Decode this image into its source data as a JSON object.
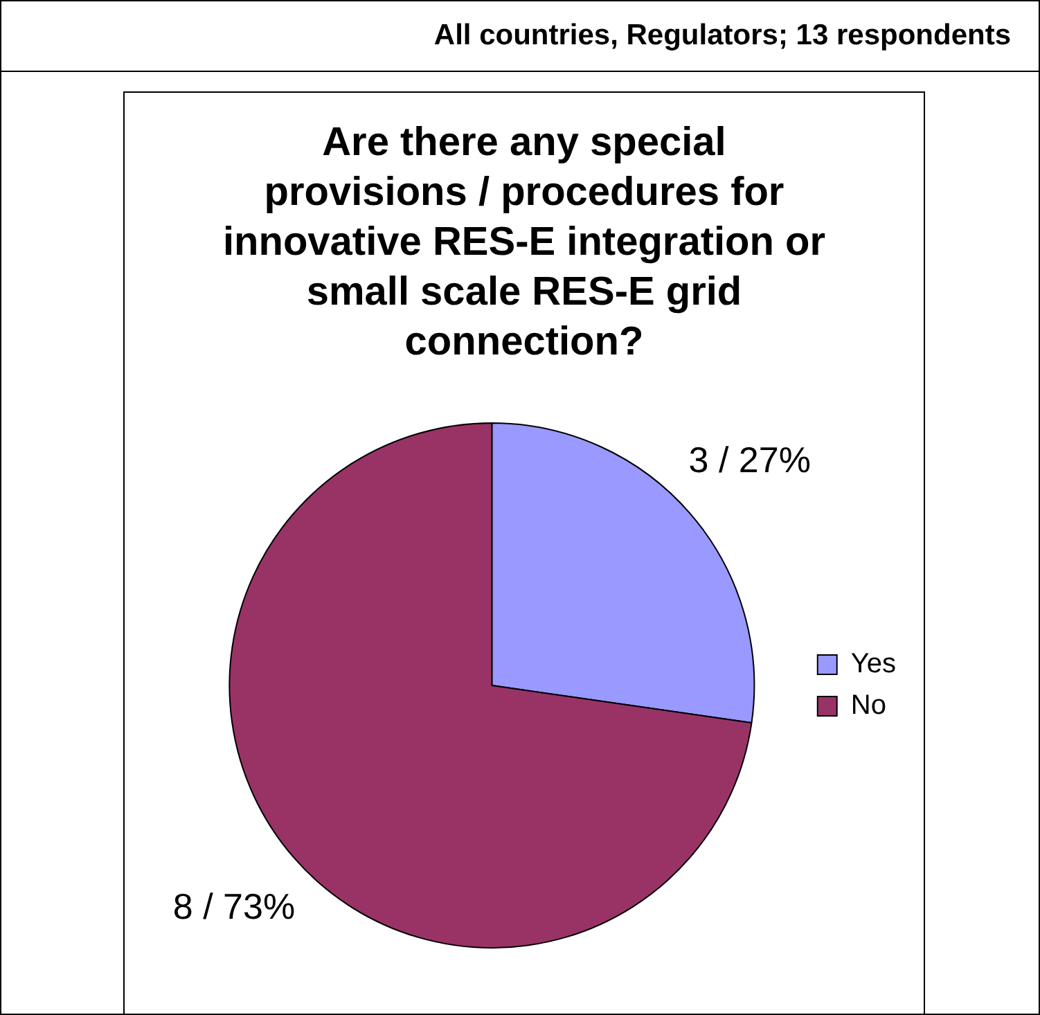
{
  "chart_data": {
    "type": "pie",
    "title": "All countries, Regulators; 13 respondents",
    "subtitle": "Are there any special provisions / procedures for innovative RES-E integration or small scale RES-E grid connection?",
    "categories": [
      "Yes",
      "No"
    ],
    "values": [
      3,
      8
    ],
    "colors": [
      "#9999ff",
      "#993366"
    ],
    "value_labels": [
      "3 / 27%",
      "8 / 73%"
    ],
    "legend": "right"
  }
}
